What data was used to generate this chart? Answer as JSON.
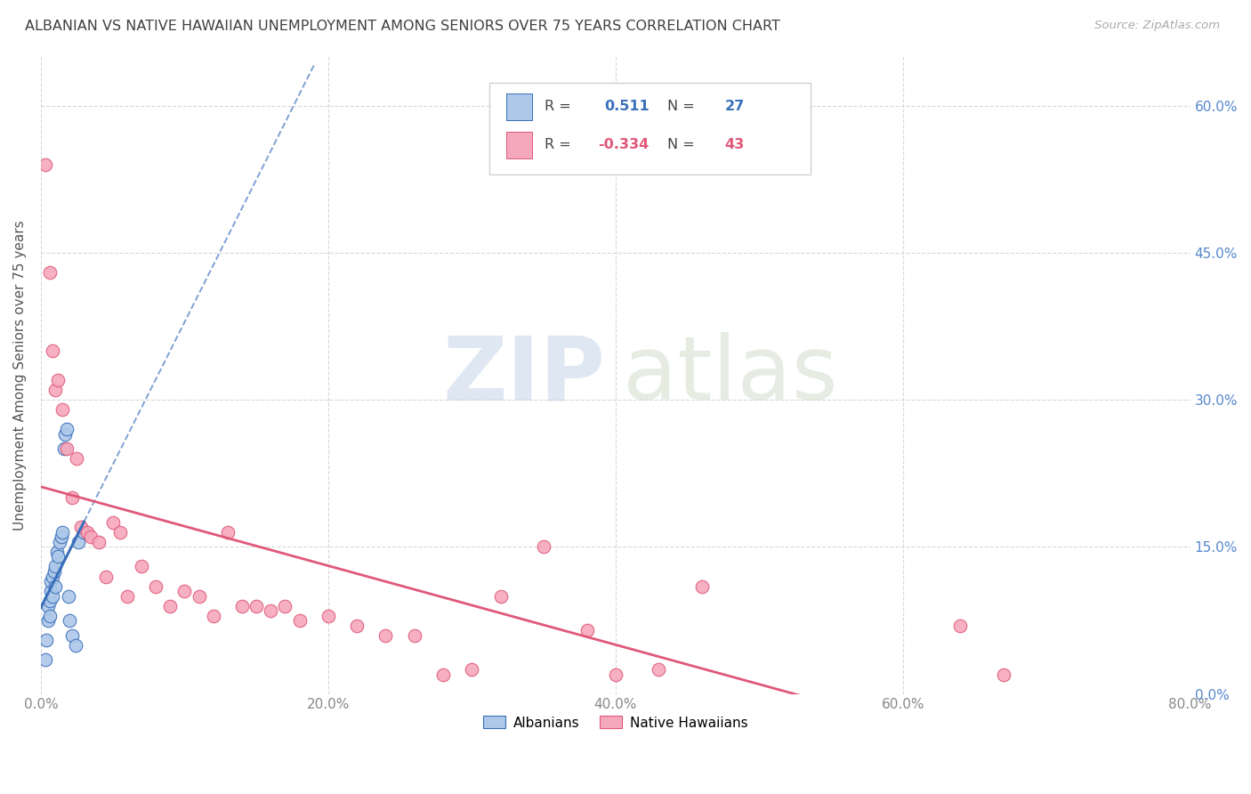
{
  "title": "ALBANIAN VS NATIVE HAWAIIAN UNEMPLOYMENT AMONG SENIORS OVER 75 YEARS CORRELATION CHART",
  "source": "Source: ZipAtlas.com",
  "ylabel": "Unemployment Among Seniors over 75 years",
  "xlim": [
    0.0,
    0.8
  ],
  "ylim": [
    0.0,
    0.65
  ],
  "xticks": [
    0.0,
    0.2,
    0.4,
    0.6,
    0.8
  ],
  "xticklabels": [
    "0.0%",
    "20.0%",
    "40.0%",
    "60.0%",
    "80.0%"
  ],
  "yticks": [
    0.0,
    0.15,
    0.3,
    0.45,
    0.6
  ],
  "yticklabels": [
    "0.0%",
    "15.0%",
    "30.0%",
    "45.0%",
    "60.0%"
  ],
  "albanian_R": 0.511,
  "albanian_N": 27,
  "hawaiian_R": -0.334,
  "hawaiian_N": 43,
  "albanian_color": "#adc8e8",
  "hawaiian_color": "#f5a8bc",
  "trend_albanian_color": "#3a6fbb",
  "trend_hawaiian_color": "#e05878",
  "background_color": "#ffffff",
  "grid_color": "#d8d8d8",
  "title_color": "#404040",
  "axis_label_color": "#555555",
  "tick_color_right": "#5588cc",
  "albanian_x": [
    0.003,
    0.004,
    0.005,
    0.005,
    0.006,
    0.006,
    0.007,
    0.007,
    0.008,
    0.008,
    0.009,
    0.01,
    0.01,
    0.011,
    0.012,
    0.013,
    0.014,
    0.015,
    0.016,
    0.017,
    0.018,
    0.019,
    0.02,
    0.022,
    0.024,
    0.026,
    0.03
  ],
  "albanian_y": [
    0.035,
    0.055,
    0.075,
    0.09,
    0.08,
    0.095,
    0.105,
    0.115,
    0.1,
    0.12,
    0.125,
    0.11,
    0.13,
    0.145,
    0.14,
    0.155,
    0.16,
    0.165,
    0.25,
    0.265,
    0.27,
    0.1,
    0.075,
    0.06,
    0.05,
    0.155,
    0.165
  ],
  "hawaiian_x": [
    0.003,
    0.006,
    0.008,
    0.01,
    0.012,
    0.015,
    0.018,
    0.022,
    0.025,
    0.028,
    0.032,
    0.035,
    0.04,
    0.045,
    0.05,
    0.055,
    0.06,
    0.07,
    0.08,
    0.09,
    0.1,
    0.11,
    0.12,
    0.13,
    0.14,
    0.15,
    0.16,
    0.17,
    0.18,
    0.2,
    0.22,
    0.24,
    0.26,
    0.28,
    0.3,
    0.32,
    0.35,
    0.38,
    0.4,
    0.43,
    0.46,
    0.64,
    0.67
  ],
  "hawaiian_y": [
    0.54,
    0.43,
    0.35,
    0.31,
    0.32,
    0.29,
    0.25,
    0.2,
    0.24,
    0.17,
    0.165,
    0.16,
    0.155,
    0.12,
    0.175,
    0.165,
    0.1,
    0.13,
    0.11,
    0.09,
    0.105,
    0.1,
    0.08,
    0.165,
    0.09,
    0.09,
    0.085,
    0.09,
    0.075,
    0.08,
    0.07,
    0.06,
    0.06,
    0.02,
    0.025,
    0.1,
    0.15,
    0.065,
    0.02,
    0.025,
    0.11,
    0.07,
    0.02
  ],
  "legend_R_albanian": "0.511",
  "legend_N_albanian": "27",
  "legend_R_hawaiian": "-0.334",
  "legend_N_hawaiian": "43"
}
